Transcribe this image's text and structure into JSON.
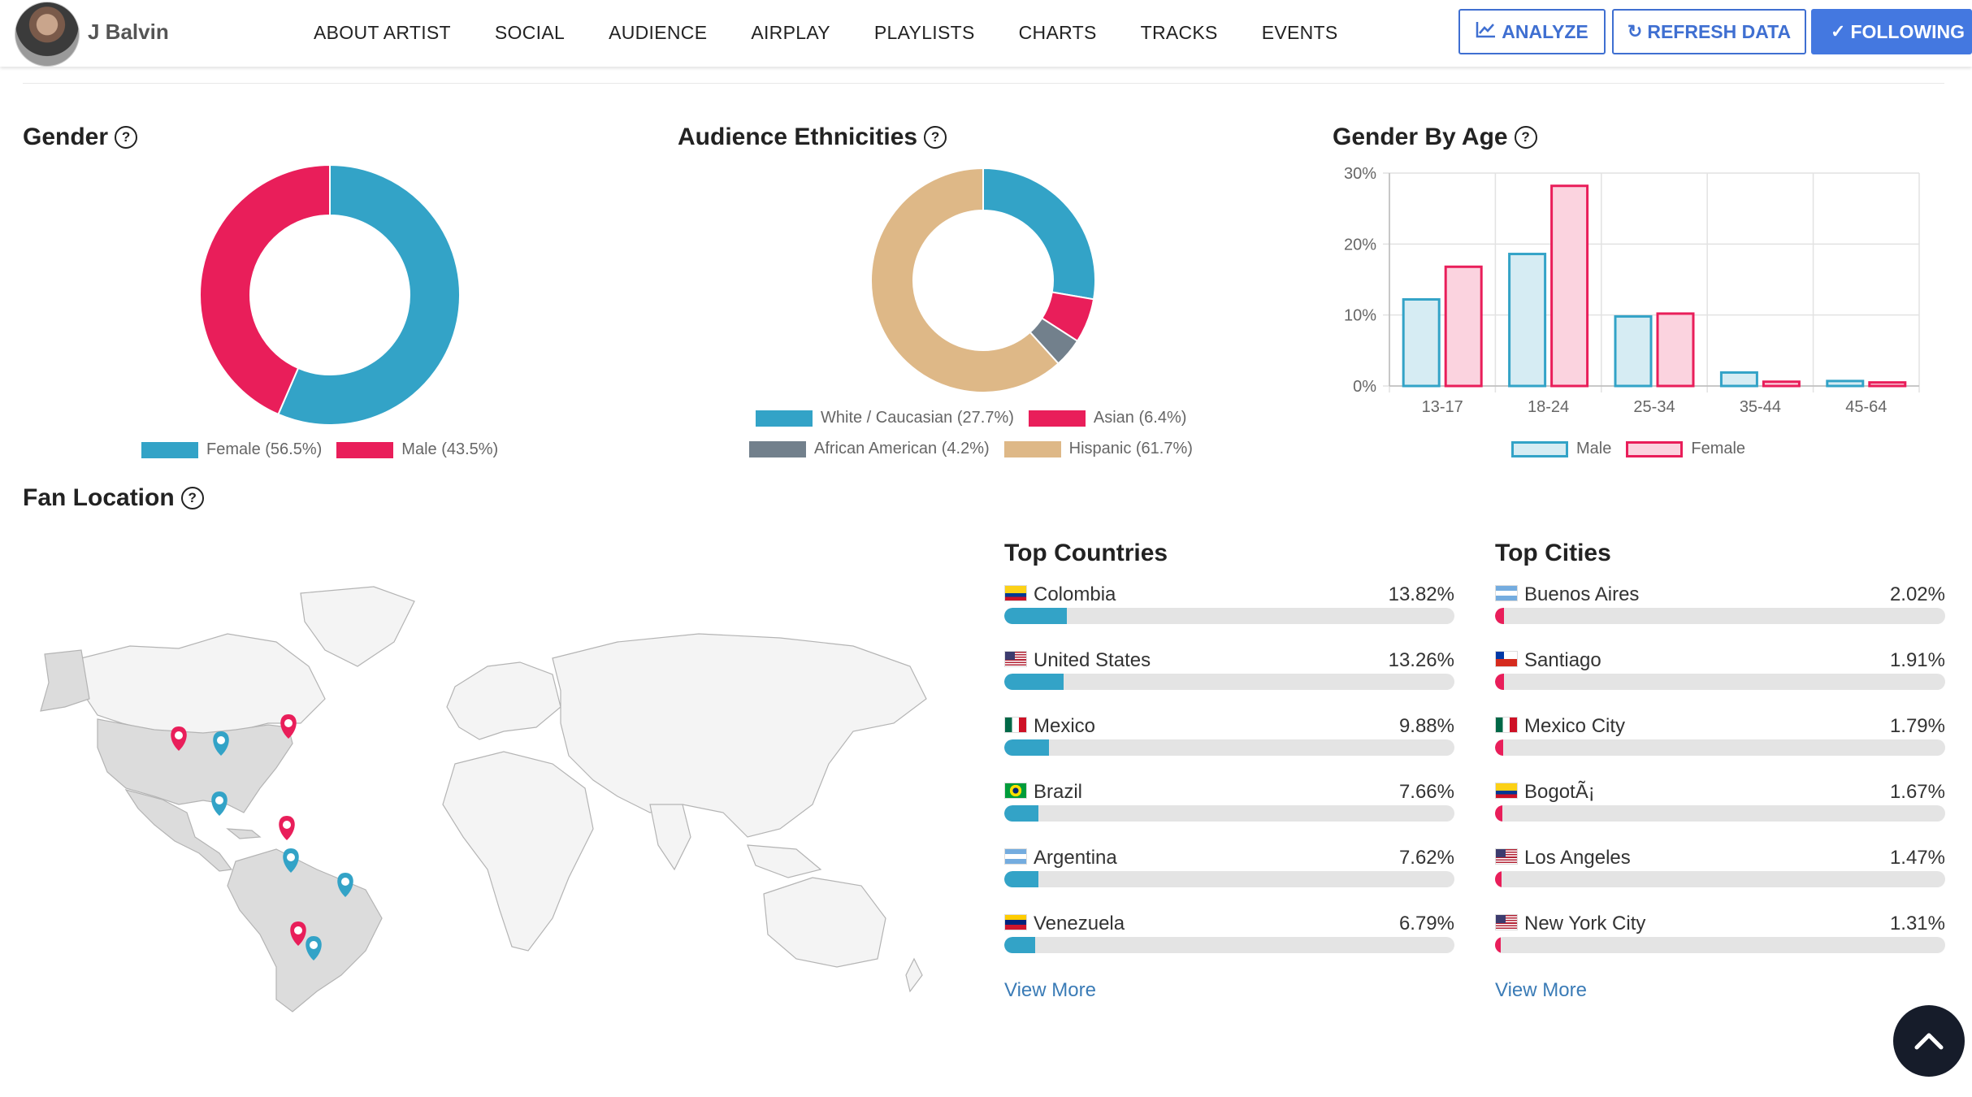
{
  "header": {
    "artist_name": "J Balvin",
    "nav": [
      "ABOUT ARTIST",
      "SOCIAL",
      "AUDIENCE",
      "AIRPLAY",
      "PLAYLISTS",
      "CHARTS",
      "TRACKS",
      "EVENTS"
    ],
    "analyze_label": "ANALYZE",
    "refresh_label": "REFRESH DATA",
    "following_label": "FOLLOWING"
  },
  "gender": {
    "title": "Gender",
    "legend": [
      {
        "label": "Female (56.5%)",
        "color": "#33a3c7"
      },
      {
        "label": "Male (43.5%)",
        "color": "#e91e5a"
      }
    ]
  },
  "ethnicities": {
    "title": "Audience Ethnicities",
    "legend": [
      {
        "label": "White / Caucasian (27.7%)",
        "color": "#33a3c7"
      },
      {
        "label": "Asian (6.4%)",
        "color": "#e91e5a"
      },
      {
        "label": "African American (4.2%)",
        "color": "#72808c"
      },
      {
        "label": "Hispanic (61.7%)",
        "color": "#deb887"
      }
    ]
  },
  "gender_by_age": {
    "title": "Gender By Age",
    "legend": [
      {
        "label": "Male",
        "color": "#33a3c7"
      },
      {
        "label": "Female",
        "color": "#e91e5a"
      }
    ]
  },
  "chart_data": [
    {
      "type": "pie",
      "title": "Gender",
      "categories": [
        "Female",
        "Male"
      ],
      "values": [
        56.5,
        43.5
      ],
      "colors": [
        "#33a3c7",
        "#e91e5a"
      ],
      "legend": "bottom"
    },
    {
      "type": "pie",
      "title": "Audience Ethnicities",
      "categories": [
        "White / Caucasian",
        "Asian",
        "African American",
        "Hispanic"
      ],
      "values": [
        27.7,
        6.4,
        4.2,
        61.7
      ],
      "colors": [
        "#33a3c7",
        "#e91e5a",
        "#72808c",
        "#deb887"
      ],
      "legend": "bottom"
    },
    {
      "type": "bar",
      "title": "Gender By Age",
      "categories": [
        "13-17",
        "18-24",
        "25-34",
        "35-44",
        "45-64"
      ],
      "series": [
        {
          "name": "Male",
          "values": [
            12.2,
            18.6,
            9.8,
            1.9,
            0.7
          ],
          "color": "#33a3c7",
          "fill": "#d6ecf3"
        },
        {
          "name": "Female",
          "values": [
            16.8,
            28.2,
            10.2,
            0.6,
            0.5
          ],
          "color": "#e91e5a",
          "fill": "#fbd3df"
        }
      ],
      "yticks": [
        "0%",
        "10%",
        "20%",
        "30%"
      ],
      "ylim": [
        0,
        30
      ],
      "grid": true,
      "legend": "bottom"
    }
  ],
  "fan_location": {
    "title": "Fan Location",
    "pins": [
      {
        "region": "US West",
        "color": "#e91e5a"
      },
      {
        "region": "US Southwest",
        "color": "#33a3c7"
      },
      {
        "region": "US Northeast",
        "color": "#e91e5a"
      },
      {
        "region": "Mexico",
        "color": "#33a3c7"
      },
      {
        "region": "Colombia",
        "color": "#e91e5a"
      },
      {
        "region": "Colombia South",
        "color": "#33a3c7"
      },
      {
        "region": "Brazil",
        "color": "#33a3c7"
      },
      {
        "region": "Chile",
        "color": "#e91e5a"
      },
      {
        "region": "Argentina",
        "color": "#33a3c7"
      }
    ]
  },
  "top_countries": {
    "title": "Top Countries",
    "view_more": "View More",
    "bar_color": "#33a3c7",
    "items": [
      {
        "name": "Colombia",
        "pct": "13.82%",
        "value": 13.82,
        "flag": "colombia"
      },
      {
        "name": "United States",
        "pct": "13.26%",
        "value": 13.26,
        "flag": "usa"
      },
      {
        "name": "Mexico",
        "pct": "9.88%",
        "value": 9.88,
        "flag": "mexico"
      },
      {
        "name": "Brazil",
        "pct": "7.66%",
        "value": 7.66,
        "flag": "brazil"
      },
      {
        "name": "Argentina",
        "pct": "7.62%",
        "value": 7.62,
        "flag": "argentina"
      },
      {
        "name": "Venezuela",
        "pct": "6.79%",
        "value": 6.79,
        "flag": "venezuela"
      }
    ]
  },
  "top_cities": {
    "title": "Top Cities",
    "view_more": "View More",
    "bar_color": "#e91e5a",
    "items": [
      {
        "name": "Buenos Aires",
        "pct": "2.02%",
        "value": 2.02,
        "flag": "argentina"
      },
      {
        "name": "Santiago",
        "pct": "1.91%",
        "value": 1.91,
        "flag": "chile"
      },
      {
        "name": "Mexico City",
        "pct": "1.79%",
        "value": 1.79,
        "flag": "mexico"
      },
      {
        "name": "BogotÃ¡",
        "pct": "1.67%",
        "value": 1.67,
        "flag": "colombia"
      },
      {
        "name": "Los Angeles",
        "pct": "1.47%",
        "value": 1.47,
        "flag": "usa"
      },
      {
        "name": "New York City",
        "pct": "1.31%",
        "value": 1.31,
        "flag": "usa"
      }
    ]
  }
}
